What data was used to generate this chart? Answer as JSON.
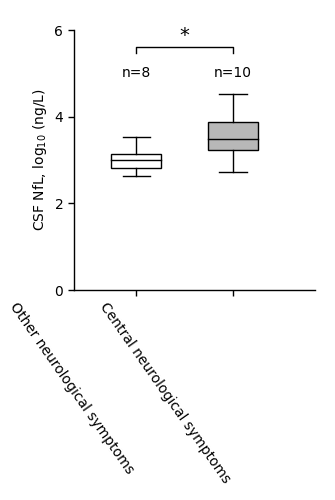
{
  "box1": {
    "whisker_low": 2.62,
    "q1": 2.82,
    "median": 3.0,
    "q3": 3.15,
    "whisker_high": 3.52,
    "color": "white",
    "label": "Other neurological symptoms",
    "n_label": "n=8",
    "x": 1
  },
  "box2": {
    "whisker_low": 2.72,
    "q1": 3.22,
    "median": 3.48,
    "q3": 3.88,
    "whisker_high": 4.52,
    "color": "#b8b8b8",
    "label": "Central neurological symptoms",
    "n_label": "n=10",
    "x": 2
  },
  "ylabel": "CSF NfL, log$_{10}$ (ng/L)",
  "ylim": [
    0,
    6
  ],
  "yticks": [
    0,
    2,
    4,
    6
  ],
  "sig_bracket_y": 5.6,
  "sig_star": "*",
  "sig_star_fontsize": 14,
  "n_label_fontsize": 10,
  "ylabel_fontsize": 10,
  "tick_fontsize": 10,
  "xtick_fontsize": 10,
  "box_width": 0.52,
  "background_color": "#ffffff",
  "linecolor": "black",
  "linewidth": 1.0,
  "xlim": [
    0.35,
    2.85
  ],
  "label_rotation": -55
}
